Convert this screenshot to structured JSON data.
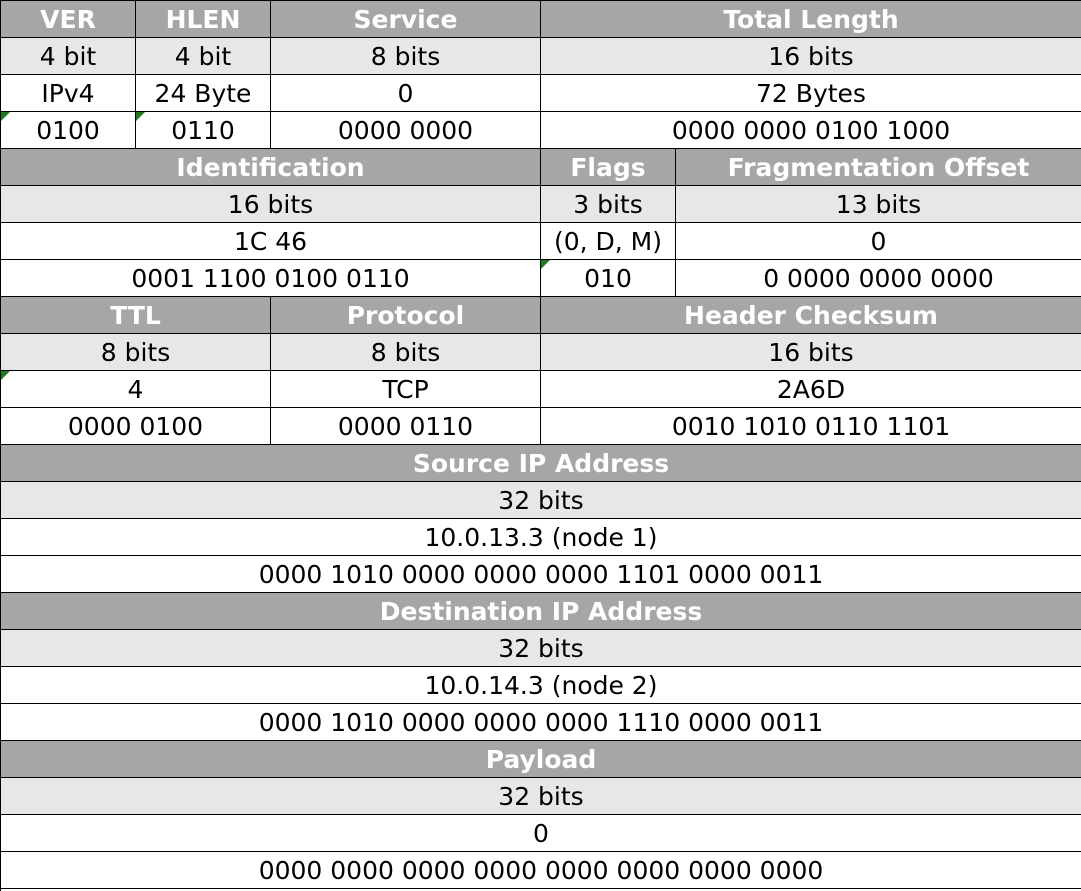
{
  "row1": {
    "headers": {
      "ver": "VER",
      "hlen": "HLEN",
      "service": "Service",
      "total_length": "Total Length"
    },
    "sizes": {
      "ver": "4 bit",
      "hlen": "4 bit",
      "service": "8 bits",
      "total_length": "16 bits"
    },
    "values": {
      "ver": "IPv4",
      "hlen": "24 Byte",
      "service": "0",
      "total_length": "72 Bytes"
    },
    "binary": {
      "ver": "0100",
      "hlen": "0110",
      "service": "0000 0000",
      "total_length": "0000 0000 0100 1000"
    }
  },
  "row2": {
    "headers": {
      "identification": "Identification",
      "flags": "Flags",
      "frag_offset": "Fragmentation Offset"
    },
    "sizes": {
      "identification": "16 bits",
      "flags": "3 bits",
      "frag_offset": "13 bits"
    },
    "values": {
      "identification": "1C 46",
      "flags": "(0, D, M)",
      "frag_offset": "0"
    },
    "binary": {
      "identification": "0001 1100 0100 0110",
      "flags": "010",
      "frag_offset": "0 0000 0000 0000"
    }
  },
  "row3": {
    "headers": {
      "ttl": "TTL",
      "protocol": "Protocol",
      "checksum": "Header Checksum"
    },
    "sizes": {
      "ttl": "8 bits",
      "protocol": "8 bits",
      "checksum": "16 bits"
    },
    "values": {
      "ttl": "4",
      "protocol": "TCP",
      "checksum": "2A6D"
    },
    "binary": {
      "ttl": "0000 0100",
      "protocol": "0000 0110",
      "checksum": "0010 1010 0110 1101"
    }
  },
  "source": {
    "header": "Source IP Address",
    "size": "32 bits",
    "value": "10.0.13.3 (node 1)",
    "binary": "0000 1010 0000 0000 0000 1101 0000 0011"
  },
  "destination": {
    "header": "Destination IP Address",
    "size": "32 bits",
    "value": "10.0.14.3 (node 2)",
    "binary": "0000 1010 0000 0000 0000 1110 0000 0011"
  },
  "payload": {
    "header": "Payload",
    "size": "32 bits",
    "value": "0",
    "binary": "0000 0000 0000 0000 0000 0000 0000 0000"
  },
  "colors": {
    "header_bg": "#a6a6a6",
    "header_text": "#ffffff",
    "size_row_bg": "#e7e7e7",
    "value_bg": "#ffffff",
    "corner_marker": "#1e7a1e"
  }
}
